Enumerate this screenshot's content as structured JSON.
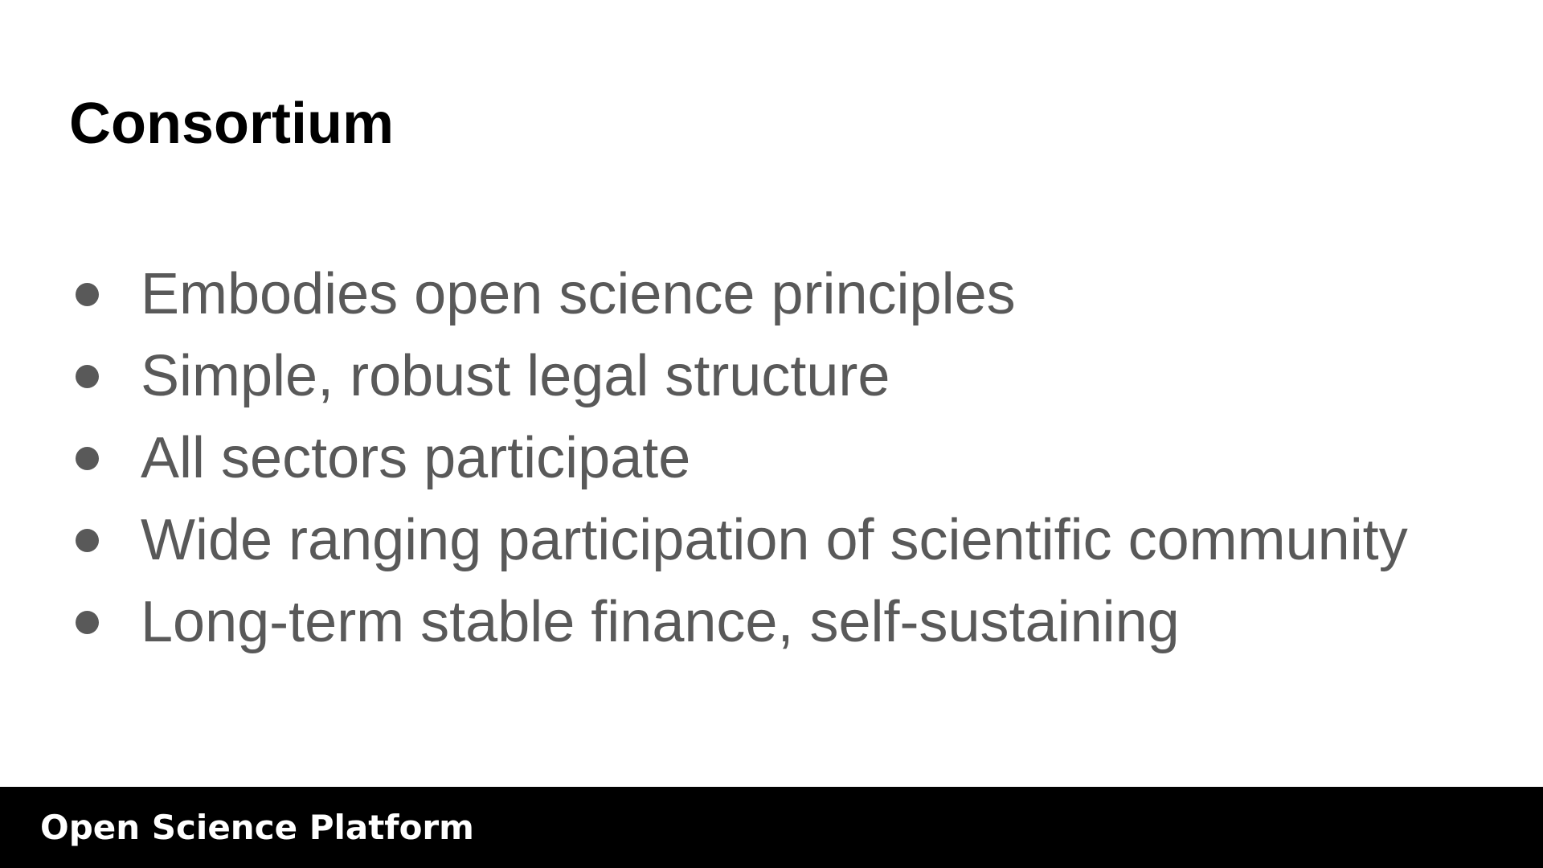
{
  "slide": {
    "title": "Consortium",
    "bullets": [
      "Embodies open science principles",
      "Simple, robust legal structure",
      "All sectors participate",
      "Wide ranging participation of scientific community",
      "Long-term stable finance, self-sustaining"
    ]
  },
  "footer": {
    "label": "Open Science Platform"
  },
  "colors": {
    "background": "#ffffff",
    "title": "#000000",
    "body_text": "#595959",
    "footer_bar": "#000000",
    "footer_text": "#ffffff"
  }
}
